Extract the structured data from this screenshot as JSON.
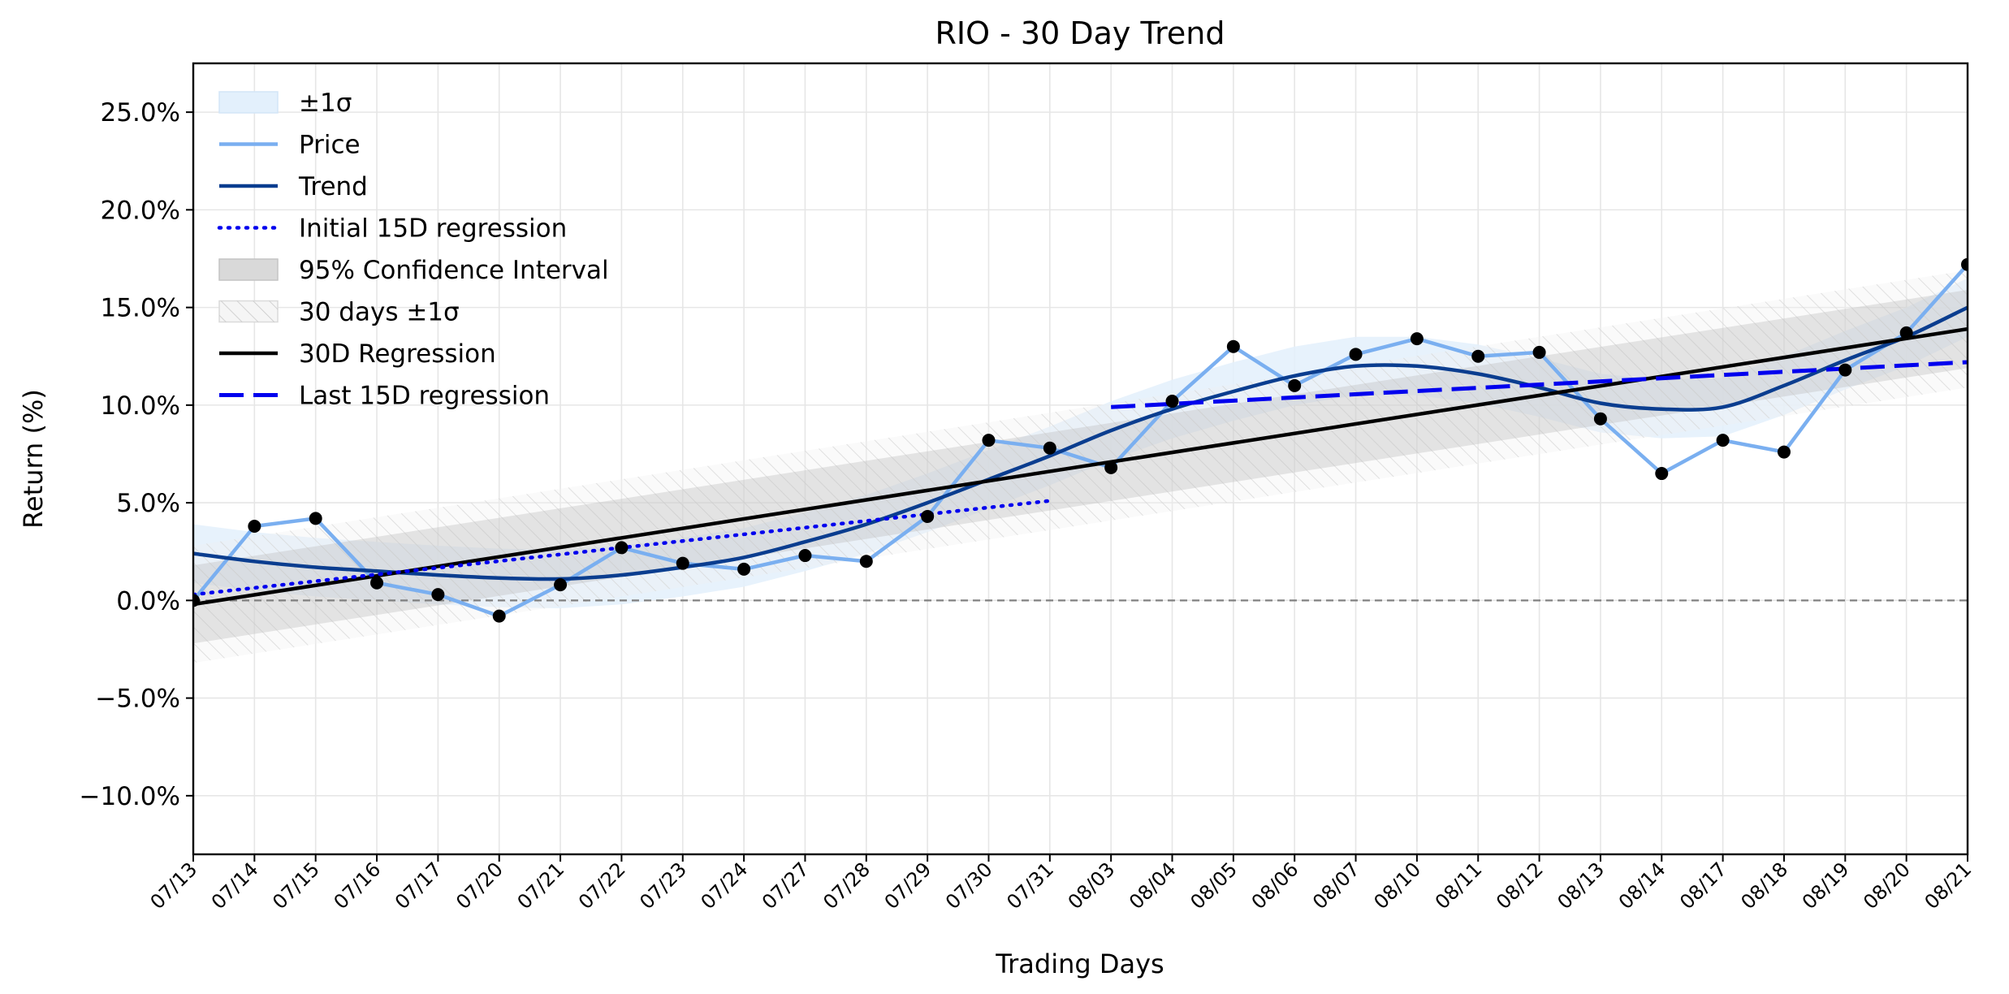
{
  "chart_data": {
    "type": "line",
    "title": "RIO - 30 Day Trend",
    "xlabel": "Trading Days",
    "ylabel": "Return (%)",
    "ylim": [
      -13,
      27.5
    ],
    "yticks": [
      -10,
      -5,
      0,
      5,
      10,
      15,
      20,
      25
    ],
    "ytick_labels": [
      "−10.0%",
      "−5.0%",
      "0.0%",
      "5.0%",
      "10.0%",
      "15.0%",
      "20.0%",
      "25.0%"
    ],
    "grid": true,
    "legend_position": "top-left",
    "categories": [
      "07/13",
      "07/14",
      "07/15",
      "07/16",
      "07/17",
      "07/20",
      "07/21",
      "07/22",
      "07/23",
      "07/24",
      "07/27",
      "07/28",
      "07/29",
      "07/30",
      "07/31",
      "08/03",
      "08/04",
      "08/05",
      "08/06",
      "08/07",
      "08/10",
      "08/11",
      "08/12",
      "08/13",
      "08/14",
      "08/17",
      "08/18",
      "08/19",
      "08/20",
      "08/21"
    ],
    "series": [
      {
        "name": "Price",
        "color": "#7aaff0",
        "values": [
          0.0,
          3.8,
          4.2,
          0.9,
          0.3,
          -0.8,
          0.8,
          2.7,
          1.9,
          1.6,
          2.3,
          2.0,
          4.3,
          8.2,
          7.8,
          6.8,
          10.2,
          13.0,
          11.0,
          12.6,
          13.4,
          12.5,
          12.7,
          9.3,
          6.5,
          8.2,
          7.6,
          11.8,
          13.7,
          17.2
        ]
      },
      {
        "name": "Trend",
        "color": "#0a3d8f",
        "values": [
          2.4,
          2.0,
          1.7,
          1.5,
          1.3,
          1.15,
          1.1,
          1.3,
          1.7,
          2.2,
          3.0,
          3.9,
          5.0,
          6.2,
          7.4,
          8.7,
          9.8,
          10.7,
          11.5,
          12.0,
          12.0,
          11.6,
          10.9,
          10.1,
          9.8,
          9.9,
          11.0,
          12.3,
          13.5,
          15.0
        ]
      },
      {
        "name": "30D Regression",
        "color": "#000000",
        "start": -0.2,
        "end": 13.9
      },
      {
        "name": "Initial 15D regression",
        "color": "#0000ee",
        "start_index": 0,
        "end_index": 14,
        "start": 0.3,
        "end": 5.1
      },
      {
        "name": "Last 15D regression",
        "color": "#0000ee",
        "start_index": 15,
        "end_index": 29,
        "start": 9.9,
        "end": 12.2
      }
    ],
    "sigma_band_half_width": 1.5,
    "confidence_band_half_width": 2.0,
    "thirty_day_sigma_half_width": 3.0,
    "zero_line": 0,
    "legend": [
      "±1σ",
      "Price",
      "Trend",
      "Initial 15D regression",
      "95% Confidence Interval",
      "30 days ±1σ",
      "30D Regression",
      "Last 15D regression"
    ]
  }
}
